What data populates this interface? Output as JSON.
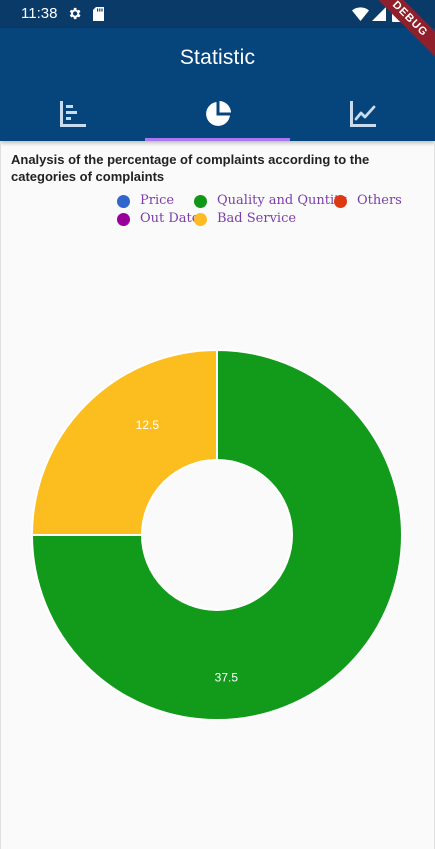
{
  "status_bar": {
    "time": "11:38",
    "icons": [
      "gear-icon",
      "sd-card-icon",
      "wifi-icon",
      "signal-icon",
      "battery-icon"
    ]
  },
  "app_bar": {
    "title": "Statistic",
    "tabs": [
      {
        "icon": "bar-chart-icon",
        "selected": false
      },
      {
        "icon": "pie-chart-icon",
        "selected": true
      },
      {
        "icon": "line-chart-icon",
        "selected": false
      }
    ],
    "indicator_color": "#a978f0",
    "background": "#06457c"
  },
  "debug_banner": "DEBUG",
  "chart_data": {
    "type": "pie",
    "title": "Analysis of the percentage of complaints according to the categories  of complaints",
    "legend_placement": "top-right",
    "legend": [
      {
        "name": "Price",
        "color": "#3366cc"
      },
      {
        "name": "Quality and Quntity",
        "color": "#109618"
      },
      {
        "name": "Others",
        "color": "#dc3912"
      },
      {
        "name": "Out Date",
        "color": "#990099"
      },
      {
        "name": "Bad Service",
        "color": "#ffbb22"
      }
    ],
    "slices": [
      {
        "name": "Quality and Quntity",
        "value": 37.5,
        "label": "37.5",
        "color": "#129a1b"
      },
      {
        "name": "Bad Service",
        "value": 12.5,
        "label": "12.5",
        "color": "#fcbd1e"
      }
    ]
  }
}
